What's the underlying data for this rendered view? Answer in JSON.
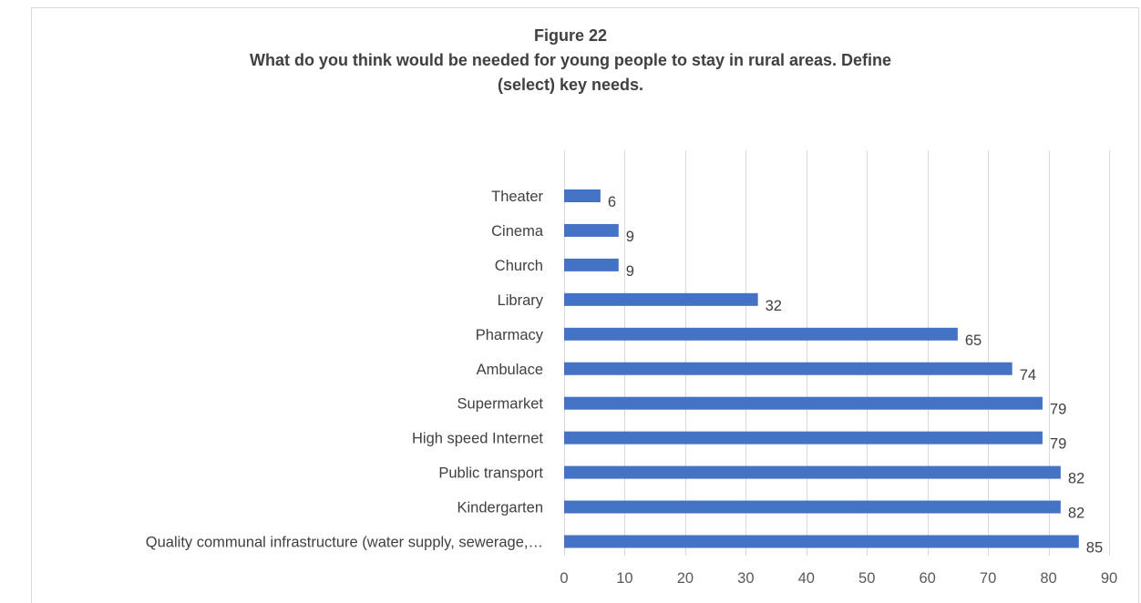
{
  "chart_data": {
    "type": "bar",
    "orientation": "horizontal",
    "title_line1": "Figure 22",
    "title_line2": "What do you think would be needed for young people to stay in rural areas. Define",
    "title_line3": "(select) key needs.",
    "categories": [
      "Theater",
      "Cinema",
      "Church",
      "Library",
      "Pharmacy",
      "Ambulace",
      "Supermarket",
      "High speed Internet",
      "Public transport",
      "Kindergarten",
      "Quality communal infrastructure (water supply, sewerage,…"
    ],
    "values": [
      6,
      9,
      9,
      32,
      65,
      74,
      79,
      79,
      82,
      82,
      85
    ],
    "xlim": [
      0,
      90
    ],
    "xticks": [
      0,
      10,
      20,
      30,
      40,
      50,
      60,
      70,
      80,
      90
    ],
    "grid": true,
    "legend": "none",
    "bar_color": "#4472c4"
  }
}
